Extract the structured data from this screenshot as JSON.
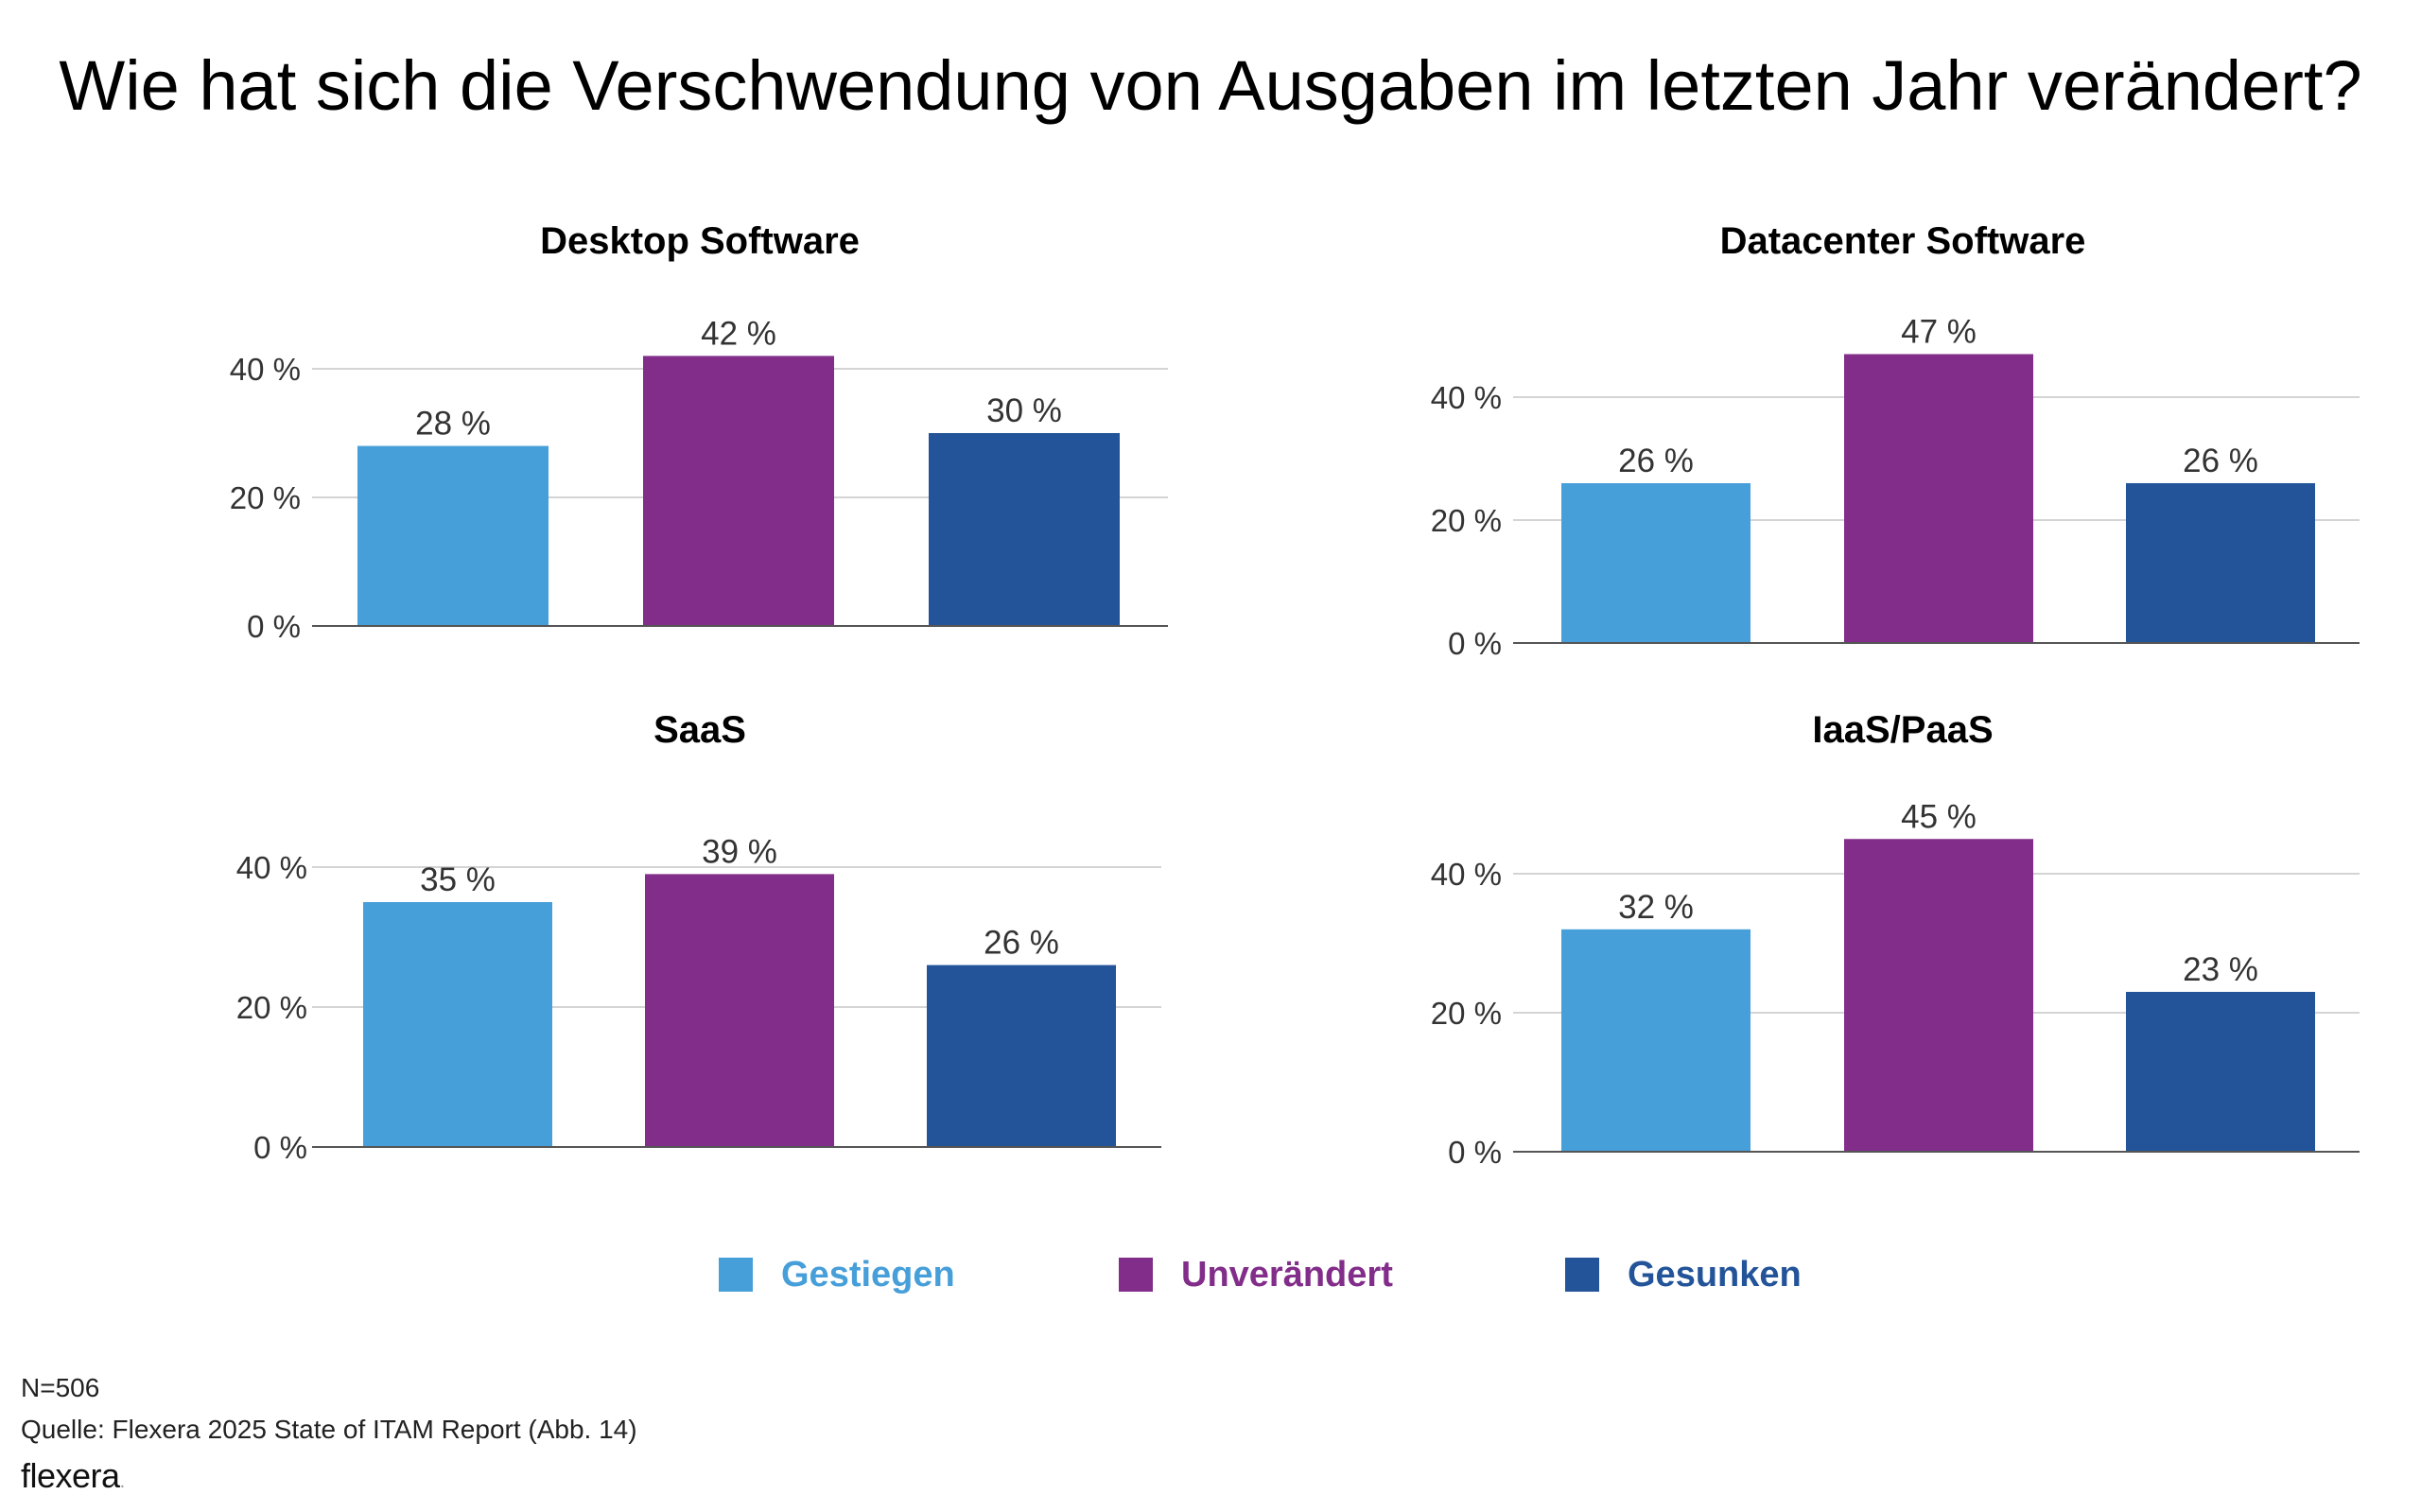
{
  "title": "Wie hat sich die Verschwendung von Ausgaben im letzten Jahr verändert?",
  "colors": {
    "gestiegen": "#479fd9",
    "unveraendert": "#812d89",
    "gesunken": "#235499"
  },
  "legend": [
    {
      "label": "Gestiegen",
      "color": "#479fd9"
    },
    {
      "label": "Unverändert",
      "color": "#812d89"
    },
    {
      "label": "Gesunken",
      "color": "#235499"
    }
  ],
  "chart_data": [
    {
      "type": "bar",
      "title": "Desktop Software",
      "categories": [
        "Gestiegen",
        "Unverändert",
        "Gesunken"
      ],
      "values": [
        28,
        42,
        30
      ],
      "value_labels": [
        "28 %",
        "42 %",
        "30 %"
      ],
      "yticks": [
        0,
        20,
        40
      ],
      "ytick_labels": [
        "0 %",
        "20 %",
        "40 %"
      ],
      "ylim": [
        0,
        45
      ],
      "grid": true
    },
    {
      "type": "bar",
      "title": "Datacenter Software",
      "categories": [
        "Gestiegen",
        "Unverändert",
        "Gesunken"
      ],
      "values": [
        26,
        47,
        26
      ],
      "value_labels": [
        "26 %",
        "47 %",
        "26 %"
      ],
      "yticks": [
        0,
        20,
        40
      ],
      "ytick_labels": [
        "0 %",
        "20 %",
        "40 %"
      ],
      "ylim": [
        0,
        50
      ],
      "grid": true
    },
    {
      "type": "bar",
      "title": "SaaS",
      "categories": [
        "Gestiegen",
        "Unverändert",
        "Gesunken"
      ],
      "values": [
        35,
        39,
        26
      ],
      "value_labels": [
        "35 %",
        "39 %",
        "26 %"
      ],
      "yticks": [
        0,
        20,
        40
      ],
      "ytick_labels": [
        "0 %",
        "20 %",
        "40 %"
      ],
      "ylim": [
        0,
        42
      ],
      "grid": true
    },
    {
      "type": "bar",
      "title": "IaaS/PaaS",
      "categories": [
        "Gestiegen",
        "Unverändert",
        "Gesunken"
      ],
      "values": [
        32,
        45,
        23
      ],
      "value_labels": [
        "32 %",
        "45 %",
        "23 %"
      ],
      "yticks": [
        0,
        20,
        40
      ],
      "ytick_labels": [
        "0 %",
        "20 %",
        "40 %"
      ],
      "ylim": [
        0,
        48
      ],
      "grid": true
    }
  ],
  "footer": {
    "n": "N=506",
    "source": "Quelle: Flexera 2025 State of ITAM Report (Abb. 14)",
    "logo_text": "flexera",
    "logo_dot": "."
  }
}
